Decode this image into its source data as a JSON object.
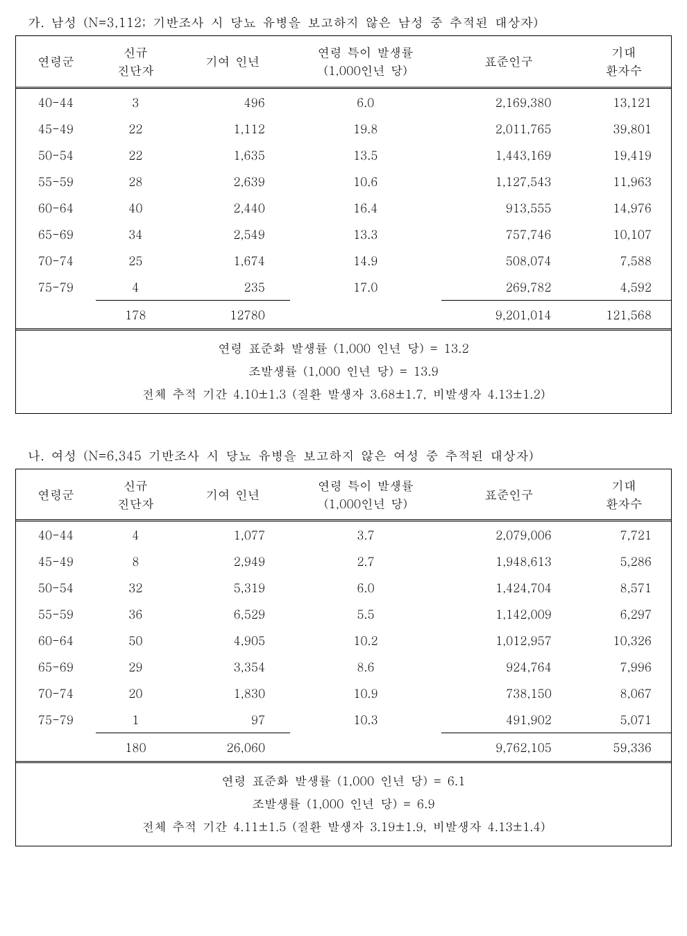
{
  "columns": [
    "연령군",
    "신규\n진단자",
    "기여 인년",
    "연령 특이 발생률\n(1,000인년 당)",
    "표준인구",
    "기대\n환자수"
  ],
  "col_align": [
    "c",
    "c",
    "r",
    "c",
    "r",
    "r3"
  ],
  "col_widths": [
    "col1",
    "col2",
    "col3",
    "col4",
    "col5",
    "col6"
  ],
  "sections": [
    {
      "title": "가. 남성 (N=3,112; 기반조사 시 당뇨 유병을 보고하지 않은 남성 중 추적된 대상자)",
      "rows": [
        [
          "40-44",
          "3",
          "496",
          "6.0",
          "2,169,380",
          "13,121"
        ],
        [
          "45-49",
          "22",
          "1,112",
          "19.8",
          "2,011,765",
          "39,801"
        ],
        [
          "50-54",
          "22",
          "1,635",
          "13.5",
          "1,443,169",
          "19,419"
        ],
        [
          "55-59",
          "28",
          "2,639",
          "10.6",
          "1,127,543",
          "11,963"
        ],
        [
          "60-64",
          "40",
          "2,440",
          "16.4",
          "913,555",
          "14,976"
        ],
        [
          "65-69",
          "34",
          "2,549",
          "13.3",
          "757,746",
          "10,107"
        ],
        [
          "70-74",
          "25",
          "1,674",
          "14.9",
          "508,074",
          "7,588"
        ],
        [
          "75-79",
          "4",
          "235",
          "17.0",
          "269,782",
          "4,592"
        ]
      ],
      "totals": [
        "",
        "178",
        "12780",
        "",
        "9,201,014",
        "121,568"
      ],
      "footer": [
        "연령 표준화 발생률 (1,000 인년 당) =  13.2",
        "조발생률 (1,000 인년 당) = 13.9",
        "전체 추적 기간 4.10±1.3 (질환 발생자 3.68±1.7, 비발생자 4.13±1.2)"
      ]
    },
    {
      "title": "나. 여성 (N=6,345 기반조사 시 당뇨 유병을 보고하지 않은 여성 중 추적된 대상자)",
      "rows": [
        [
          "40-44",
          "4",
          "1,077",
          "3.7",
          "2,079,006",
          "7,721"
        ],
        [
          "45-49",
          "8",
          "2,949",
          "2.7",
          "1,948,613",
          "5,286"
        ],
        [
          "50-54",
          "32",
          "5,319",
          "6.0",
          "1,424,704",
          "8,571"
        ],
        [
          "55-59",
          "36",
          "6,529",
          "5.5",
          "1,142,009",
          "6,297"
        ],
        [
          "60-64",
          "50",
          "4,905",
          "10.2",
          "1,012,957",
          "10,326"
        ],
        [
          "65-69",
          "29",
          "3,354",
          "8.6",
          "924,764",
          "7,996"
        ],
        [
          "70-74",
          "20",
          "1,830",
          "10.9",
          "738,150",
          "8,067"
        ],
        [
          "75-79",
          "1",
          "97",
          "10.3",
          "491,902",
          "5,071"
        ]
      ],
      "totals": [
        "",
        "180",
        "26,060",
        "",
        "9,762,105",
        "59,336"
      ],
      "footer": [
        "연령 표준화 발생률 (1,000 인년 당) =  6.1",
        "조발생률 (1,000 인년 당) = 6.9",
        "전체 추적 기간 4.11±1.5 (질환 발생자 3.19±1.9, 비발생자 4.13±1.4)"
      ]
    }
  ],
  "style": {
    "text_color": "#000000",
    "background_color": "#ffffff",
    "font_size_body": 17,
    "font_size_title": 18
  }
}
